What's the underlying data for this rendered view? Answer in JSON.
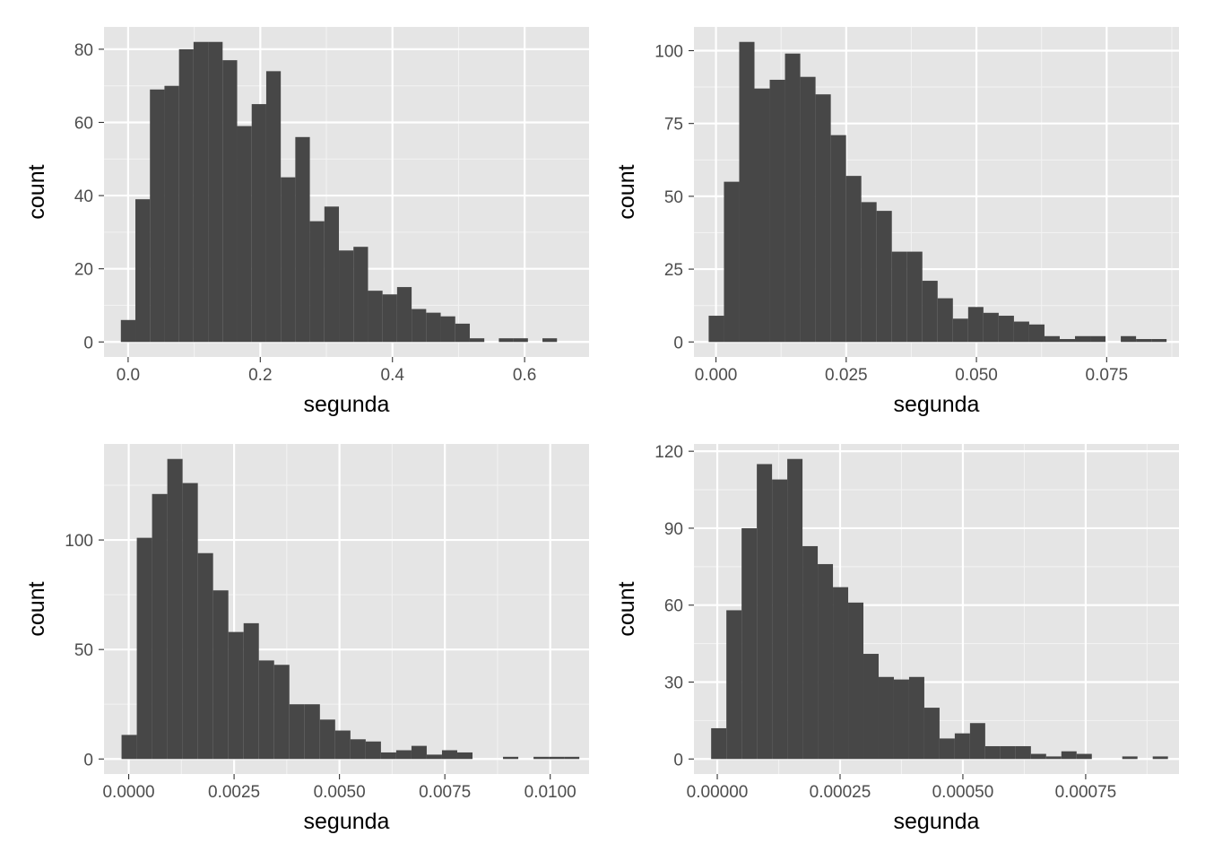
{
  "chart_data": [
    {
      "type": "bar",
      "xlabel": "segunda",
      "ylabel": "count",
      "grid": true,
      "xlim": [
        -0.0365,
        0.6975
      ],
      "ylim": [
        -4.1,
        86.1
      ],
      "x_ticks": [
        0.0,
        0.2,
        0.4,
        0.6
      ],
      "x_tick_labels": [
        "0.0",
        "0.2",
        "0.4",
        "0.6"
      ],
      "y_ticks": [
        0,
        20,
        40,
        60,
        80
      ],
      "y_tick_labels": [
        "0",
        "20",
        "40",
        "60",
        "80"
      ],
      "bin_start": -0.011,
      "bin_width": 0.022,
      "counts": [
        6,
        39,
        69,
        70,
        80,
        82,
        82,
        77,
        59,
        65,
        74,
        45,
        56,
        33,
        37,
        25,
        26,
        14,
        13,
        15,
        9,
        8,
        7,
        5,
        1,
        0,
        1,
        1,
        0,
        1
      ]
    },
    {
      "type": "bar",
      "xlabel": "segunda",
      "ylabel": "count",
      "grid": true,
      "xlim": [
        -0.004228,
        0.088884
      ],
      "ylim": [
        -5.15,
        108.15
      ],
      "x_ticks": [
        0.0,
        0.025,
        0.05,
        0.075
      ],
      "x_tick_labels": [
        "0.000",
        "0.025",
        "0.050",
        "0.075"
      ],
      "y_ticks": [
        0,
        25,
        50,
        75,
        100
      ],
      "y_tick_labels": [
        "0",
        "25",
        "50",
        "75",
        "100"
      ],
      "bin_start": -0.0014,
      "bin_width": 0.00293,
      "counts": [
        9,
        55,
        103,
        87,
        90,
        99,
        91,
        85,
        71,
        57,
        48,
        45,
        31,
        31,
        21,
        15,
        8,
        12,
        10,
        9,
        7,
        6,
        2,
        1,
        2,
        2,
        0,
        2,
        1,
        1
      ]
    },
    {
      "type": "bar",
      "xlabel": "segunda",
      "ylabel": "count",
      "grid": true,
      "xlim": [
        -0.000586,
        0.010921
      ],
      "ylim": [
        -6.85,
        143.85
      ],
      "x_ticks": [
        0.0,
        0.0025,
        0.005,
        0.0075,
        0.01
      ],
      "x_tick_labels": [
        "0.0000",
        "0.0025",
        "0.0050",
        "0.0075",
        "0.0100"
      ],
      "y_ticks": [
        0,
        50,
        100
      ],
      "y_tick_labels": [
        "0",
        "50",
        "100"
      ],
      "bin_start": -0.00017,
      "bin_width": 0.000362,
      "counts": [
        11,
        101,
        121,
        137,
        126,
        94,
        77,
        58,
        62,
        45,
        43,
        25,
        25,
        18,
        13,
        9,
        8,
        3,
        4,
        6,
        2,
        4,
        3,
        0,
        0,
        1,
        0,
        1,
        1,
        1
      ]
    },
    {
      "type": "bar",
      "xlabel": "segunda",
      "ylabel": "count",
      "grid": true,
      "xlim": [
        -4.75e-05,
        0.00094
      ],
      "ylim": [
        -5.85,
        122.85
      ],
      "x_ticks": [
        0.0,
        0.00025,
        0.0005,
        0.00075
      ],
      "x_tick_labels": [
        "0.00000",
        "0.00025",
        "0.00050",
        "0.00075"
      ],
      "y_ticks": [
        0,
        30,
        60,
        90,
        120
      ],
      "y_tick_labels": [
        "0",
        "30",
        "60",
        "90",
        "120"
      ],
      "bin_start": -1.25e-05,
      "bin_width": 3.1e-05,
      "counts": [
        12,
        58,
        90,
        115,
        109,
        117,
        83,
        76,
        67,
        61,
        41,
        32,
        31,
        32,
        20,
        8,
        10,
        14,
        5,
        5,
        5,
        2,
        1,
        3,
        2,
        0,
        0,
        1,
        0,
        1
      ]
    }
  ]
}
